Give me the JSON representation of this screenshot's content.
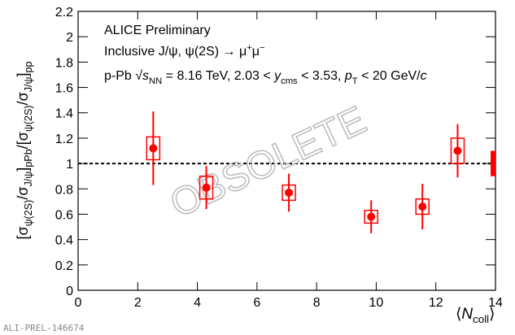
{
  "chart_data": {
    "type": "scatter",
    "x_label": [
      {
        "t": "⟨"
      },
      {
        "t": "N",
        "s": "i"
      },
      {
        "t": "coll",
        "s": "sub"
      },
      {
        "t": "⟩"
      }
    ],
    "y_label": [
      {
        "t": "[σ"
      },
      {
        "t": "ψ(2S)",
        "s": "sub"
      },
      {
        "t": "/σ"
      },
      {
        "t": "J/ψ",
        "s": "sub"
      },
      {
        "t": "]"
      },
      {
        "t": "pPb",
        "s": "sub"
      },
      {
        "t": "/[σ"
      },
      {
        "t": "ψ(2S)",
        "s": "sub"
      },
      {
        "t": "/σ"
      },
      {
        "t": "J/ψ",
        "s": "sub"
      },
      {
        "t": "]"
      },
      {
        "t": "pp",
        "s": "sub"
      }
    ],
    "annotations": [
      [
        {
          "t": "ALICE Preliminary"
        }
      ],
      [
        {
          "t": "Inclusive J/ψ, ψ(2S) → μ"
        },
        {
          "t": "+",
          "s": "sup"
        },
        {
          "t": "μ"
        },
        {
          "t": "−",
          "s": "sup"
        }
      ],
      [
        {
          "t": "p-Pb √"
        },
        {
          "t": "s",
          "s": "i"
        },
        {
          "t": "NN",
          "s": "sub"
        },
        {
          "t": " = 8.16 TeV, 2.03 < "
        },
        {
          "t": "y",
          "s": "i"
        },
        {
          "t": "cms",
          "s": "sub"
        },
        {
          "t": " < 3.53, "
        },
        {
          "t": "p",
          "s": "i"
        },
        {
          "t": "T",
          "s": "sub"
        },
        {
          "t": " < 20 GeV/"
        },
        {
          "t": "c",
          "s": "i"
        }
      ]
    ],
    "watermark": "OBSOLETE",
    "footer": "ALI-PREL-146674",
    "series": [
      {
        "color": "#ff0000",
        "x": [
          2.52,
          4.3,
          7.07,
          9.83,
          11.55,
          12.73
        ],
        "values": [
          1.12,
          0.81,
          0.77,
          0.58,
          0.66,
          1.1
        ],
        "errors": [
          0.29,
          0.17,
          0.15,
          0.13,
          0.18,
          0.21
        ],
        "sys_errors": [
          0.09,
          0.09,
          0.06,
          0.05,
          0.06,
          0.1
        ]
      }
    ],
    "global_uncertainty": {
      "x": 14,
      "value": 1,
      "error": 0.1
    },
    "reference_line": 1,
    "xlim": [
      0,
      14
    ],
    "xticks": [
      0,
      2,
      4,
      6,
      8,
      10,
      12,
      14
    ],
    "ylim": [
      0,
      2.2
    ],
    "yticks": [
      0,
      0.2,
      0.4,
      0.6,
      0.8,
      1,
      1.2,
      1.4,
      1.6,
      1.8,
      2,
      2.2
    ]
  }
}
